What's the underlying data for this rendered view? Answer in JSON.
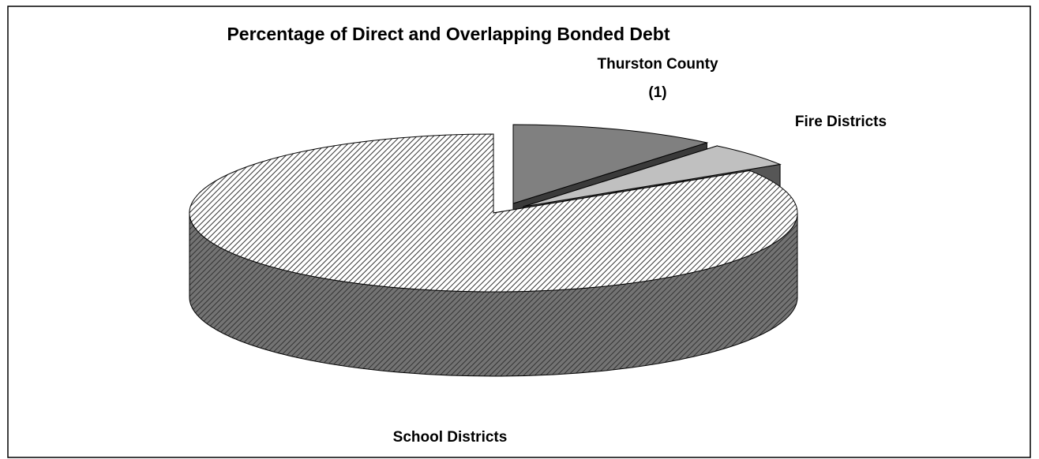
{
  "chart_data": {
    "type": "pie",
    "title": "Percentage of Direct and Overlapping Bonded Debt",
    "categories": [
      "Thurston County (1)",
      "Fire Districts",
      "School Districts"
    ],
    "values": [
      11,
      5,
      84
    ],
    "colors": [
      "#808080",
      "#c0c0c0",
      "#ffffff"
    ],
    "hatched": [
      false,
      false,
      true
    ]
  }
}
